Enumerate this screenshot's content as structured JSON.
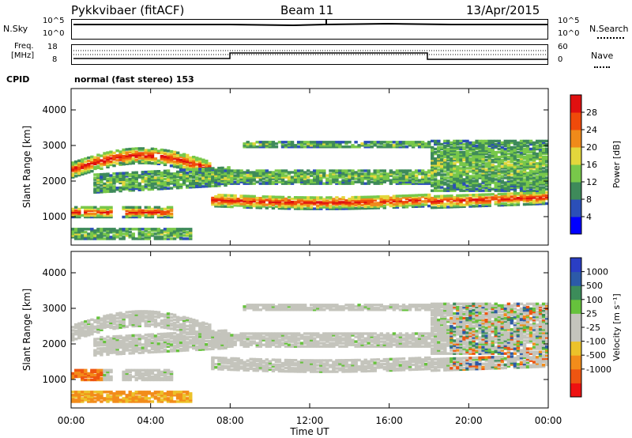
{
  "header": {
    "title": "Pykkvibaer (fitACF)",
    "beam": "Beam 11",
    "date": "13/Apr/2015"
  },
  "nsky": {
    "label": "N.Sky",
    "ticks": [
      "10^5",
      "10^0"
    ],
    "right_label": "N.Search",
    "right_ticks": [
      "10^5",
      "10^0"
    ]
  },
  "freq": {
    "label_line1": "Freq.",
    "label_line2": "[MHz]",
    "ticks": [
      "18",
      "8"
    ],
    "right_label": "Nave",
    "right_ticks": [
      "60",
      "0"
    ]
  },
  "cpid": {
    "label": "CPID",
    "value": "normal (fast stereo) 153"
  },
  "colors": {
    "power": [
      "#0000ff",
      "#2b4fb8",
      "#3e8a5a",
      "#78c84a",
      "#e3d73c",
      "#f08a1a",
      "#f04a0a",
      "#e01010"
    ],
    "velocity": [
      "#ee1111",
      "#ee5511",
      "#f28c1a",
      "#ecc22a",
      "#c4c4bc",
      "#c4c4bc",
      "#66c23c",
      "#3c8c5a",
      "#2c5aa8",
      "#2a3ec4"
    ]
  },
  "chart_data": [
    {
      "type": "heatmap",
      "title": "Power",
      "ylabel": "Slant Range [km]",
      "xlabel": "",
      "ylim": [
        200,
        4600
      ],
      "y_ticks": [
        "4000",
        "3000",
        "2000",
        "1000"
      ],
      "x_ticks": [
        "00:00",
        "04:00",
        "08:00",
        "12:00",
        "16:00",
        "20:00",
        "00:00"
      ],
      "colorbar_label": "Power [dB]",
      "colorbar_ticks": [
        "28",
        "24",
        "20",
        "16",
        "12",
        "8",
        "4"
      ],
      "colorbar_range": [
        0,
        32
      ]
    },
    {
      "type": "heatmap",
      "title": "Velocity",
      "ylabel": "Slant Range [km]",
      "xlabel": "Time UT",
      "ylim": [
        200,
        4600
      ],
      "y_ticks": [
        "4000",
        "3000",
        "2000",
        "1000"
      ],
      "x_ticks": [
        "00:00",
        "04:00",
        "08:00",
        "12:00",
        "16:00",
        "20:00",
        "00:00"
      ],
      "colorbar_label": "Velocity [m s⁻¹]",
      "colorbar_ticks": [
        "1000",
        "500",
        "100",
        "25",
        "-25",
        "-100",
        "-500",
        "-1000"
      ]
    }
  ]
}
